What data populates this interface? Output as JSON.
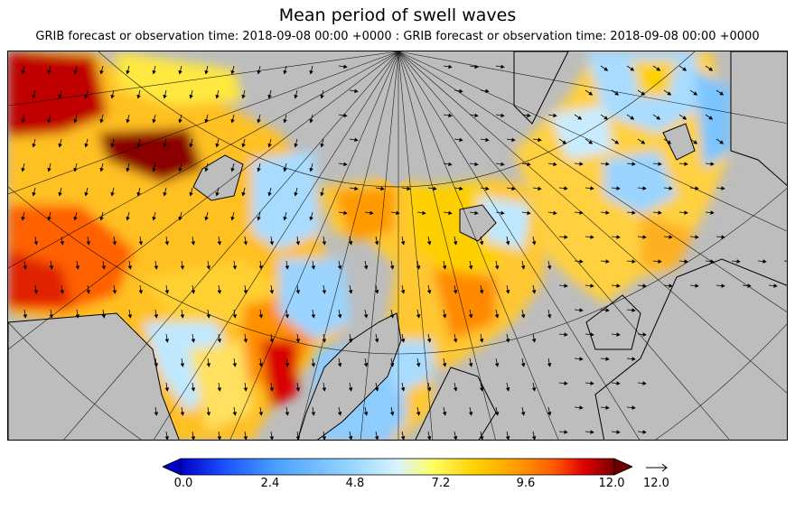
{
  "title": "Mean period of swell waves",
  "subtitle": "GRIB forecast or observation time: 2018-09-08 00:00 +0000 : GRIB forecast or observation time: 2018-09-08 00:00 +0000",
  "map": {
    "projection": "polar stereographic",
    "land_color": "#bdbdbd",
    "coastline_color": "#000000",
    "graticule_color": "#000000",
    "vector_field": "swell direction arrows"
  },
  "colorbar": {
    "ticks": [
      "0.0",
      "2.4",
      "4.8",
      "7.2",
      "9.6",
      "12.0"
    ],
    "min": 0.0,
    "max": 12.0,
    "extend": "both",
    "colors": [
      "#0000c8",
      "#1a50ff",
      "#4aa0ff",
      "#9ad8ff",
      "#d8f4ff",
      "#ffff66",
      "#ffd000",
      "#ff9a00",
      "#ff5a00",
      "#e00000",
      "#7a0000"
    ],
    "under_color": "#0000c8",
    "over_color": "#6a0000"
  },
  "arrow_key": {
    "label": "12.0"
  }
}
